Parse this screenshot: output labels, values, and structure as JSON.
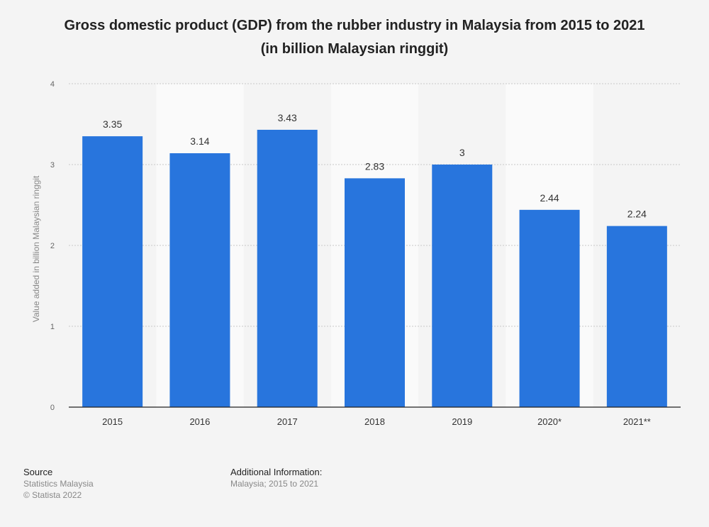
{
  "title_line1": "Gross domestic product (GDP) from the rubber industry in Malaysia from 2015 to 2021",
  "title_line2": "(in billion Malaysian ringgit)",
  "chart_data": {
    "type": "bar",
    "categories": [
      "2015",
      "2016",
      "2017",
      "2018",
      "2019",
      "2020*",
      "2021**"
    ],
    "values": [
      3.35,
      3.14,
      3.43,
      2.83,
      3,
      2.44,
      2.24
    ],
    "value_labels": [
      "3.35",
      "3.14",
      "3.43",
      "2.83",
      "3",
      "2.44",
      "2.24"
    ],
    "ylabel": "Value added in billion Malaysian ringgit",
    "xlabel": "",
    "ylim": [
      0,
      4
    ],
    "yticks": [
      0,
      1,
      2,
      3,
      4
    ],
    "grid": true,
    "bar_color": "#2875dd"
  },
  "footer": {
    "source_heading": "Source",
    "source_lines": [
      "Statistics Malaysia",
      "© Statista 2022"
    ],
    "info_heading": "Additional Information:",
    "info_lines": [
      "Malaysia; 2015 to 2021"
    ]
  }
}
